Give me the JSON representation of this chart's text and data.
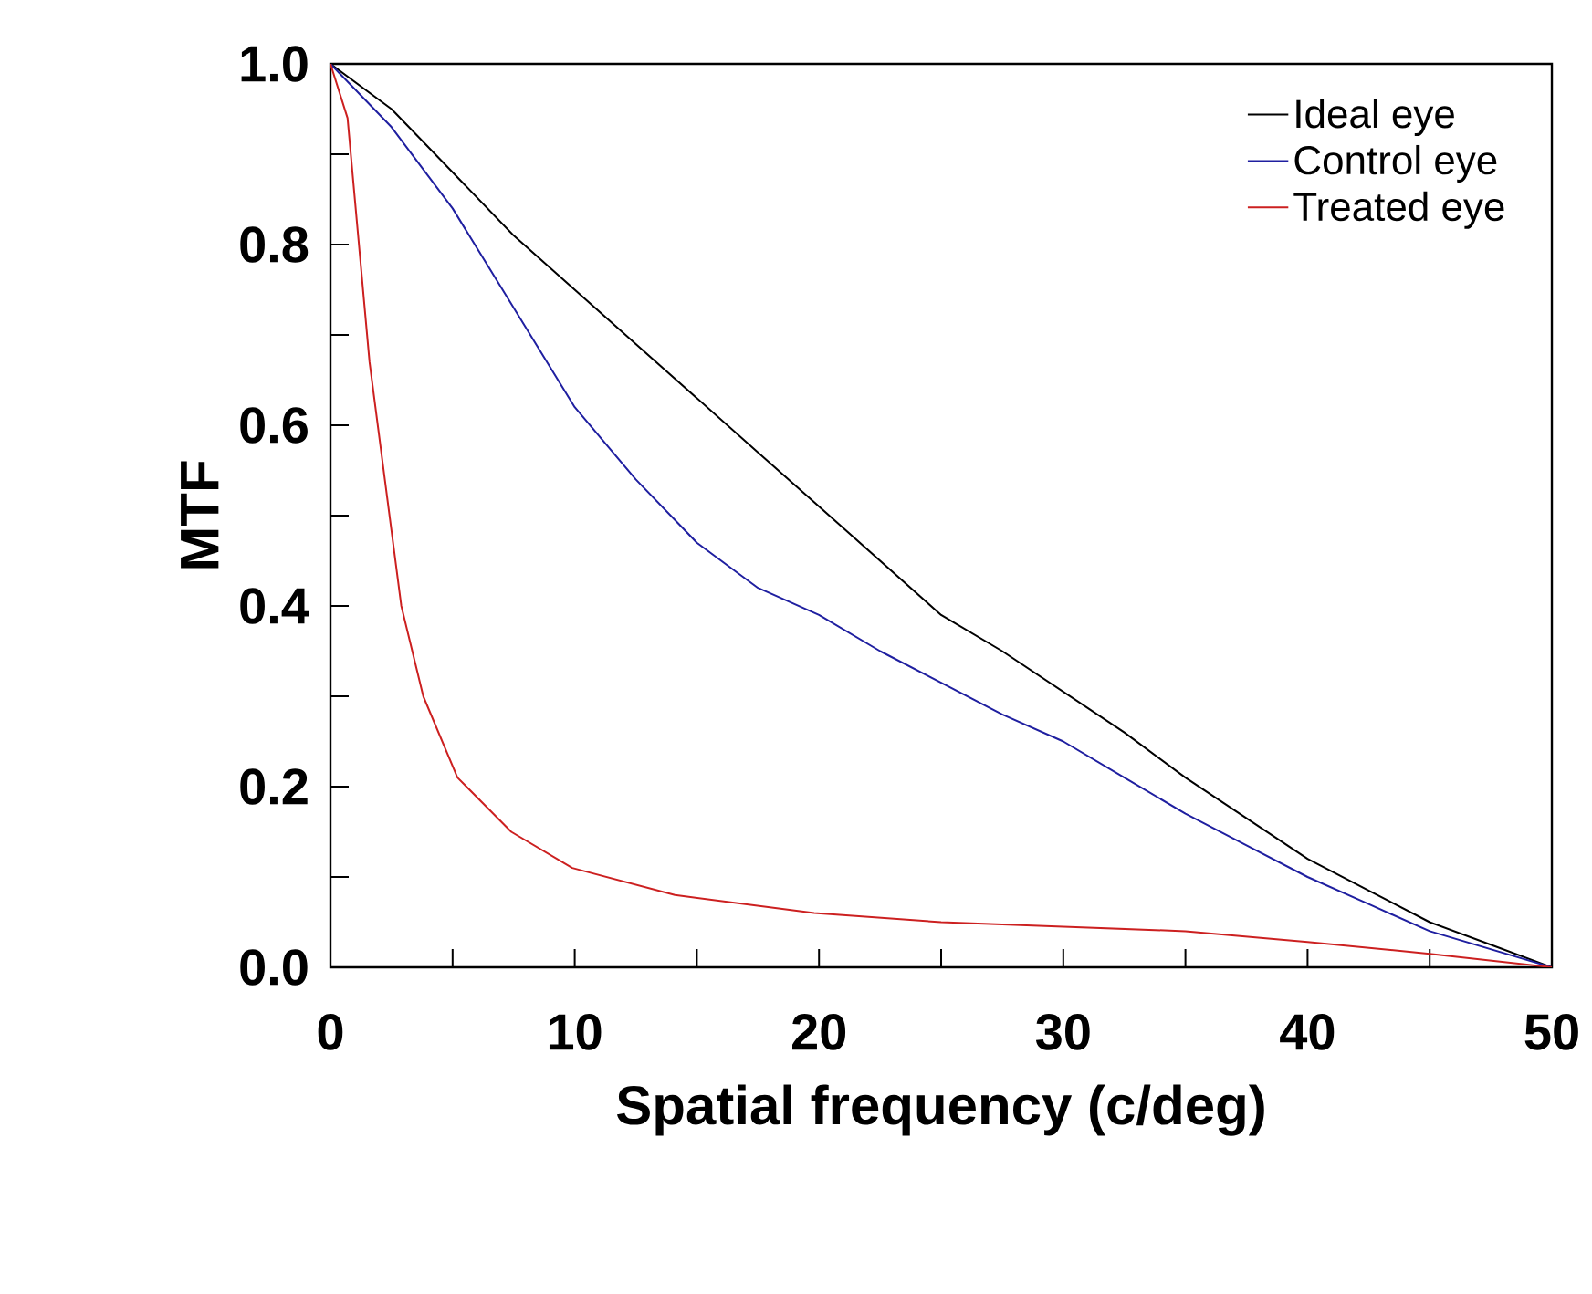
{
  "chart_data": {
    "type": "line",
    "xlabel": "Spatial frequency (c/deg)",
    "ylabel": "MTF",
    "xlim": [
      0,
      50
    ],
    "ylim": [
      0,
      1
    ],
    "xticks": [
      0,
      10,
      20,
      30,
      40,
      50
    ],
    "yticks": [
      {
        "value": 0,
        "label": "0.0"
      },
      {
        "value": 0.2,
        "label": "0.2"
      },
      {
        "value": 0.4,
        "label": "0.4"
      },
      {
        "value": 0.6,
        "label": "0.6"
      },
      {
        "value": 0.8,
        "label": "0.8"
      },
      {
        "value": 1,
        "label": "1.0"
      }
    ],
    "legend": "top right",
    "grid": false,
    "marker": "none",
    "line_style": "solid",
    "series": [
      {
        "name": "Ideal eye",
        "color": "#000000",
        "x": [
          0,
          2.5,
          5,
          7.5,
          10,
          12.5,
          15,
          17.5,
          20,
          22.5,
          25,
          27.5,
          30,
          32.5,
          35,
          37.5,
          40,
          42.5,
          45,
          47.5,
          50
        ],
        "values": [
          1.0,
          0.95,
          0.88,
          0.81,
          0.75,
          0.69,
          0.63,
          0.57,
          0.51,
          0.45,
          0.39,
          0.35,
          0.305,
          0.26,
          0.21,
          0.165,
          0.12,
          0.085,
          0.05,
          0.025,
          0
        ]
      },
      {
        "name": "Control eye",
        "color": "#1f1fa0",
        "x": [
          0,
          2.5,
          5,
          7.5,
          10,
          12.5,
          15,
          17.5,
          20,
          22.5,
          25,
          27.5,
          30,
          32.5,
          35,
          37.5,
          40,
          42.5,
          45,
          47.5,
          50
        ],
        "values": [
          1.0,
          0.93,
          0.84,
          0.73,
          0.62,
          0.54,
          0.47,
          0.42,
          0.39,
          0.35,
          0.315,
          0.28,
          0.25,
          0.21,
          0.17,
          0.135,
          0.1,
          0.07,
          0.04,
          0.02,
          0
        ]
      },
      {
        "name": "Treated eye",
        "color": "#cc2020",
        "x": [
          0,
          0.7,
          1.6,
          2.9,
          3.8,
          5.2,
          7.4,
          9.9,
          14.1,
          19.8,
          25,
          30,
          35,
          40,
          45,
          50
        ],
        "values": [
          1.0,
          0.94,
          0.67,
          0.4,
          0.3,
          0.21,
          0.15,
          0.11,
          0.08,
          0.06,
          0.05,
          0.045,
          0.04,
          0.028,
          0.015,
          0
        ]
      }
    ]
  }
}
